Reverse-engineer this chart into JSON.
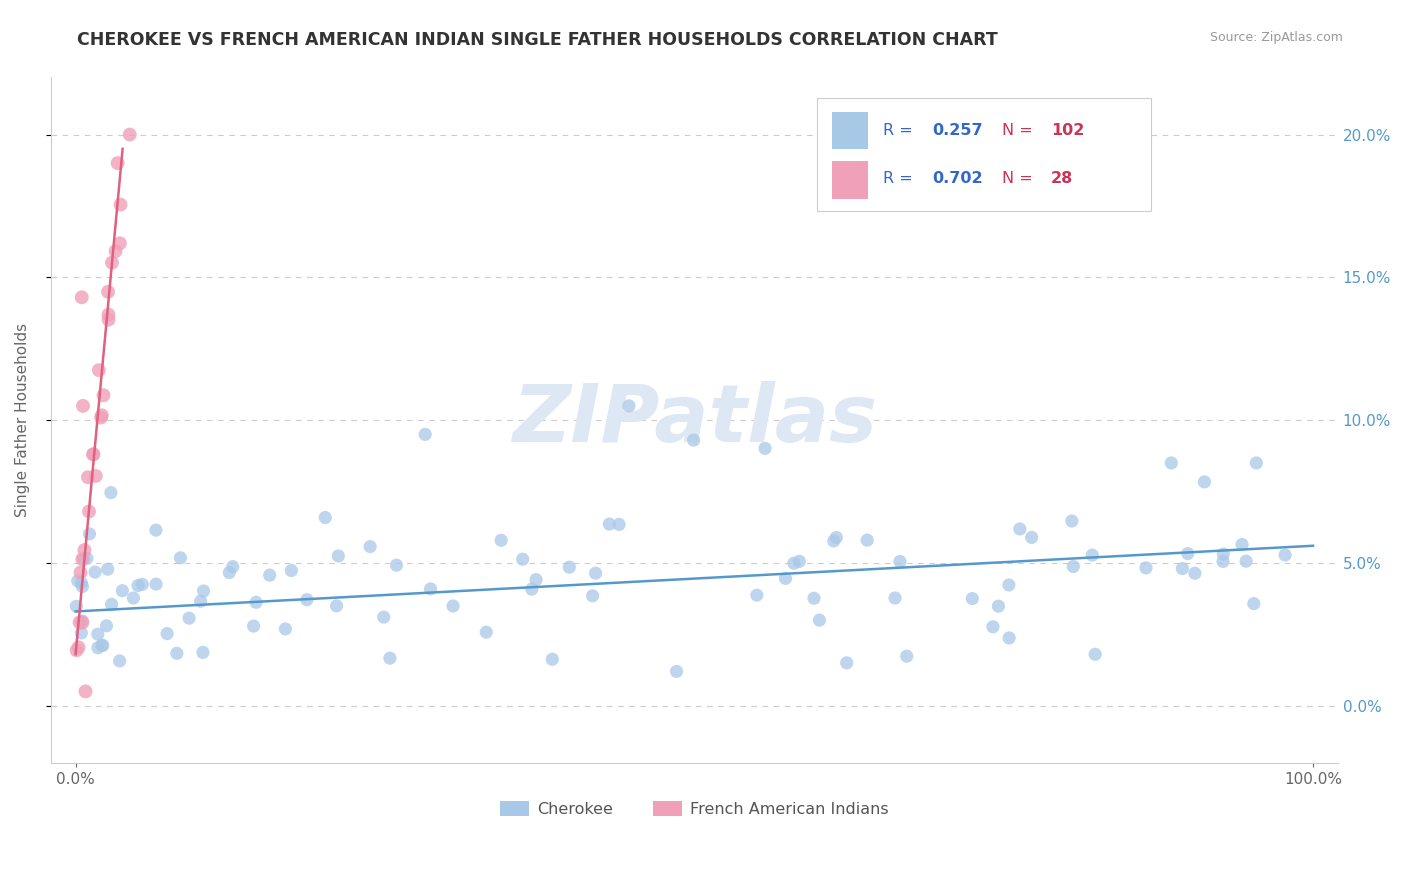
{
  "title": "CHEROKEE VS FRENCH AMERICAN INDIAN SINGLE FATHER HOUSEHOLDS CORRELATION CHART",
  "source": "Source: ZipAtlas.com",
  "ylabel": "Single Father Households",
  "cherokee_R": 0.257,
  "cherokee_N": 102,
  "french_R": 0.702,
  "french_N": 28,
  "cherokee_color": "#a8c8e8",
  "french_color": "#f0a0b8",
  "cherokee_line_color": "#5599cc",
  "french_line_color": "#e06080",
  "title_color": "#333333",
  "legend_R_color": "#3366cc",
  "legend_N_color": "#cc3355",
  "ytick_color": "#5599cc",
  "watermark_color": "#dde8f4",
  "source_color": "#999999",
  "ylabel_color": "#666666",
  "xtick_color": "#666666",
  "grid_color": "#cccccc",
  "legend_border_color": "#cccccc",
  "background_color": "#ffffff",
  "xlim": [
    -2,
    102
  ],
  "ylim": [
    -2,
    22
  ],
  "yticks": [
    0,
    5,
    10,
    15,
    20
  ],
  "ytick_labels": [
    "0.0%",
    "5.0%",
    "10.0%",
    "15.0%",
    "20.0%"
  ],
  "xtick_left": "0.0%",
  "xtick_right": "100.0%",
  "cherokee_line_x": [
    0,
    100
  ],
  "cherokee_line_y": [
    3.3,
    5.6
  ],
  "french_line_x": [
    0,
    3.8
  ],
  "french_line_y": [
    1.8,
    19.5
  ]
}
